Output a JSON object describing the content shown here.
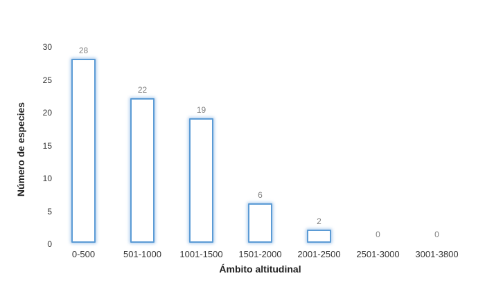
{
  "chart_data": {
    "type": "bar",
    "title": "",
    "xlabel": "Ámbito altitudinal",
    "ylabel": "Número de especies",
    "categories": [
      "0-500",
      "501-1000",
      "1001-1500",
      "1501-2000",
      "2001-2500",
      "2501-3000",
      "3001-3800"
    ],
    "values": [
      28,
      22,
      19,
      6,
      2,
      0,
      0
    ],
    "value_labels": [
      "28",
      "22",
      "19",
      "6",
      "2",
      "0",
      "0"
    ],
    "y_ticks": [
      0,
      5,
      10,
      15,
      20,
      25,
      30
    ],
    "ylim": [
      0,
      30
    ],
    "grid": false,
    "legend": false,
    "axis_lines": false,
    "bar_fill": "#ffffff",
    "bar_border_color": "#5B9BD5",
    "bar_glow_color": "#BDD7EE",
    "value_label_color": "#808080",
    "tick_label_color": "#333333",
    "axis_title_color": "#1f1f1f",
    "background_color": "#ffffff"
  }
}
